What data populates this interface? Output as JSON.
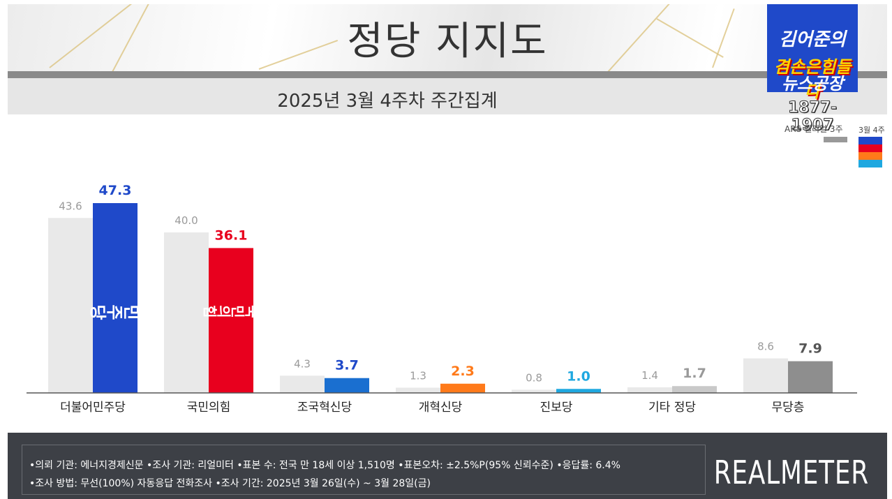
{
  "header": {
    "title": "정당 지지도",
    "subtitle": "2025년 3월 4주차 주간집계"
  },
  "logo": {
    "line1": "김어준의",
    "line2": "겸손은힘들다",
    "line3": "뉴스공장",
    "phone": "1877-1907"
  },
  "legend": {
    "prev_label": "ARS 렐리얼 3주",
    "curr_label": "3월 4주",
    "prev_color": "#999999",
    "curr_colors": [
      "#1f49c9",
      "#e8001e",
      "#ff7a1a",
      "#1fa8e0"
    ]
  },
  "chart_data": {
    "type": "bar",
    "categories": [
      "더불어민주당",
      "국민의힘",
      "조국혁신당",
      "개혁신당",
      "진보당",
      "기타 정당",
      "무당층"
    ],
    "series": [
      {
        "name": "3주",
        "values": [
          43.6,
          40.0,
          4.3,
          1.3,
          0.8,
          1.4,
          8.6
        ]
      },
      {
        "name": "3월 4주",
        "values": [
          47.3,
          36.1,
          3.7,
          2.3,
          1.0,
          1.7,
          7.9
        ]
      }
    ],
    "prev_labels": [
      "43.6",
      "40.0",
      "4.3",
      "1.3",
      "0.8",
      "1.4",
      "8.6"
    ],
    "curr_labels": [
      "47.3",
      "36.1",
      "3.7",
      "2.3",
      "1.0",
      "1.7",
      "7.9"
    ],
    "prev_color": "#e9e9e9",
    "curr_colors": [
      "#1f49c9",
      "#e8001e",
      "#1a6fd0",
      "#ff7a1a",
      "#1fa8e0",
      "#c9c9c9",
      "#8e8e8e"
    ],
    "label_colors": [
      "#1f49c9",
      "#e8001e",
      "#1f49c9",
      "#ff7a1a",
      "#1fa8e0",
      "#999999",
      "#555555"
    ],
    "bar_marks": [
      "민주당",
      "국민의힘"
    ],
    "ylim": [
      0,
      50
    ],
    "grid": false,
    "legend": "top-right"
  },
  "footer": {
    "line1": "•의뢰 기관: 에너지경제신문  •조사 기관: 리얼미터 •표본 수: 전국 만 18세 이상 1,510명 •표본오차: ±2.5%P(95% 신뢰수준) •응답률: 6.4%",
    "line2": "•조사 방법: 무선(100%) 자동응답 전화조사 •조사 기간: 2025년 3월 26일(수) ~ 3월 28일(금)",
    "brand": "REALMETER"
  }
}
